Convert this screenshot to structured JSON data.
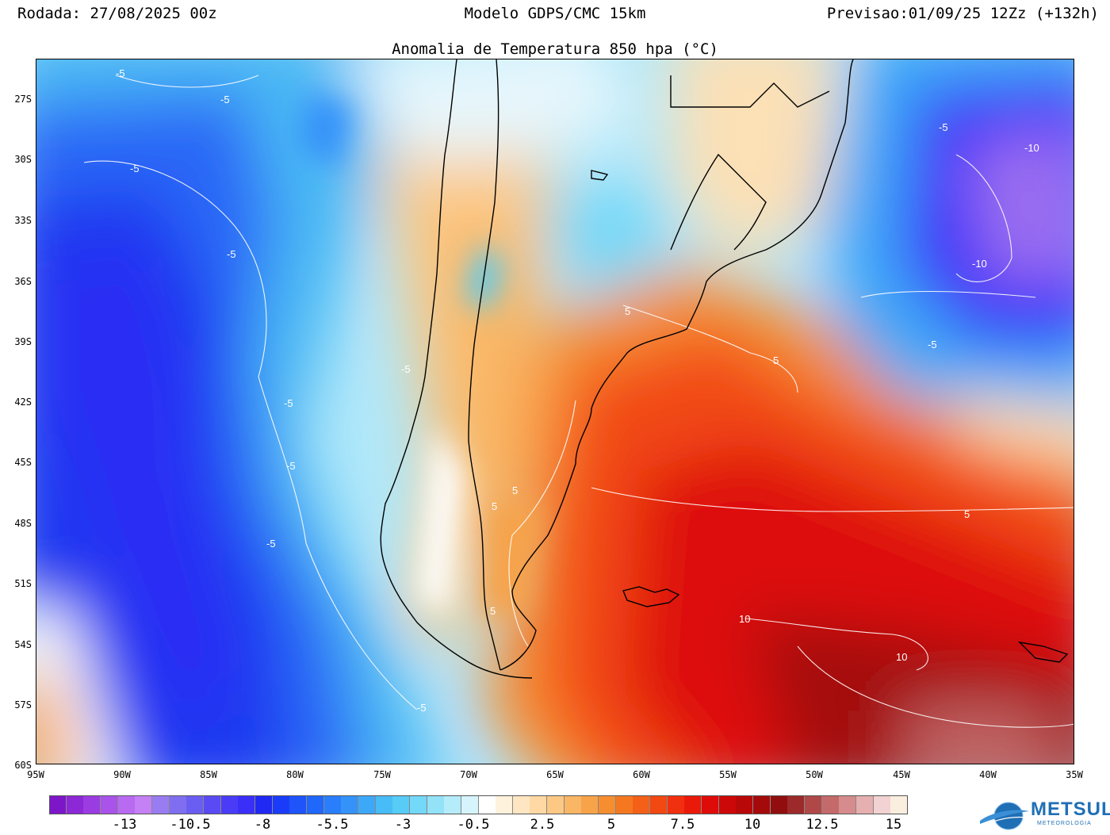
{
  "header": {
    "run": "Rodada: 27/08/2025 00z",
    "model": "Modelo GDPS/CMC 15km",
    "forecast": "Previsao:01/09/25 12Zz (+132h)"
  },
  "map": {
    "title": "Anomalia de Temperatura 850 hpa (°C)",
    "lat_labels": [
      "27S",
      "30S",
      "33S",
      "36S",
      "39S",
      "42S",
      "45S",
      "48S",
      "51S",
      "54S",
      "57S",
      "60S"
    ],
    "lon_labels": [
      "95W",
      "90W",
      "85W",
      "80W",
      "75W",
      "70W",
      "65W",
      "60W",
      "55W",
      "50W",
      "45W",
      "40W",
      "35W"
    ],
    "contour_labels": [
      "-5",
      "-5",
      "-5",
      "-5",
      "-5",
      "-5",
      "-5",
      "-5",
      "-5",
      "-5",
      "-5",
      "-10",
      "-10",
      "5",
      "5",
      "5",
      "5",
      "5",
      "5",
      "10",
      "10"
    ]
  },
  "colorbar": {
    "colors": [
      "#7d16c8",
      "#8c28d6",
      "#9b3ce2",
      "#a953ea",
      "#b86af0",
      "#c480f4",
      "#9a7cf2",
      "#7f6ff0",
      "#6a5ef2",
      "#5a4af4",
      "#4a3cf6",
      "#3a2ff8",
      "#2028f4",
      "#1a3cf8",
      "#1e54fa",
      "#2068fb",
      "#2a7efb",
      "#3492f9",
      "#3ea8f8",
      "#48bcf6",
      "#56ccf6",
      "#74d8f8",
      "#94e2f8",
      "#b4ecfa",
      "#d6f4fc",
      "#ffffff",
      "#fff2dc",
      "#ffe6c2",
      "#ffd8a4",
      "#fcc884",
      "#f9b664",
      "#f7a34a",
      "#f68e30",
      "#f57820",
      "#f46018",
      "#f24812",
      "#f0300e",
      "#ea1a0a",
      "#de0c08",
      "#cc0808",
      "#b80808",
      "#a40a0a",
      "#920e0e",
      "#9c2a2a",
      "#b04848",
      "#c46a6a",
      "#d68c8c",
      "#e6b0b0",
      "#f2d2d2",
      "#faeede"
    ],
    "labels": [
      "-13",
      "-10.5",
      "-8",
      "-5.5",
      "-3",
      "-0.5",
      "2.5",
      "5",
      "7.5",
      "10",
      "12.5",
      "15"
    ]
  },
  "logo": {
    "name": "METSUL",
    "subtitle": "METEOROLOGIA"
  }
}
